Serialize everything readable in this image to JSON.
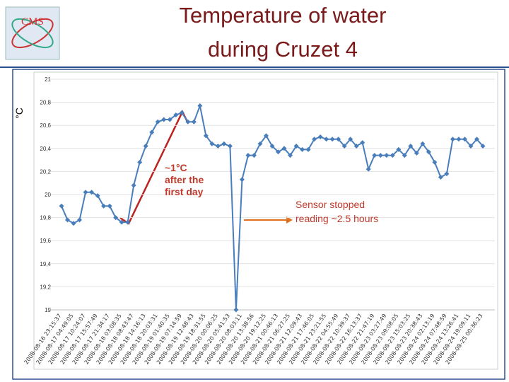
{
  "logo": "CMS",
  "chart_data": {
    "type": "line",
    "title": [
      "Temperature of water",
      "during Cruzet 4"
    ],
    "y_label": "°C",
    "categories": [
      "2008-08-16 23:15:37",
      null,
      "2008-08-17 04:49:05",
      null,
      "2008-08-17 10:24:07",
      null,
      "2008-08-17 15:57:49",
      null,
      "2008-08-17 21:34:17",
      null,
      "2008-08-18 03:08:35",
      null,
      "2008-08-18 08:43:47",
      null,
      "2008-08-18 14:16:13",
      null,
      "2008-08-18 20:03:31",
      null,
      "2008-08-19 01:40:35",
      null,
      "2008-08-19 07:14:59",
      null,
      "2008-08-19 12:48:43",
      null,
      "2008-08-19 18:31:55",
      null,
      "2008-08-20 00:06:25",
      null,
      "2008-08-20 05:41:53",
      null,
      "2008-08-20 08:03:11",
      null,
      "2008-08-20 13:38:56",
      null,
      "2008-08-20 19:12:25",
      null,
      "2008-08-21 00:46:13",
      null,
      "2008-08-21 06:27:25",
      null,
      "2008-08-21 12:09:43",
      null,
      "2008-08-21 17:46:05",
      null,
      "2008-08-21 23:21:55",
      null,
      "2008-08-22 04:55:49",
      null,
      "2008-08-22 10:39:37",
      null,
      "2008-08-22 16:13:37",
      null,
      "2008-08-22 21:47:19",
      null,
      "2008-08-23 03:27:49",
      null,
      "2008-08-23 09:08:05",
      null,
      "2008-08-23 15:03:25",
      null,
      "2008-08-23 20:38:43",
      null,
      "2008-08-24 02:13:19",
      null,
      "2008-08-24 07:48:59",
      null,
      "2008-08-24 13:26:41",
      null,
      "2008-08-24 19:09:11",
      null,
      "2008-08-25 00:36:23"
    ],
    "values": [
      19.9,
      19.78,
      19.75,
      19.78,
      20.02,
      20.02,
      19.99,
      19.9,
      19.9,
      19.8,
      19.76,
      19.76,
      20.08,
      20.28,
      20.42,
      20.54,
      20.63,
      20.65,
      20.65,
      20.69,
      20.71,
      20.63,
      20.63,
      20.77,
      20.51,
      20.44,
      20.42,
      20.44,
      20.42,
      19,
      20.13,
      20.34,
      20.34,
      20.44,
      20.51,
      20.42,
      20.37,
      20.4,
      20.34,
      20.42,
      20.39,
      20.39,
      20.48,
      20.5,
      20.48,
      20.48,
      20.48,
      20.42,
      20.48,
      20.42,
      20.45,
      20.22,
      20.34,
      20.34,
      20.34,
      20.34,
      20.39,
      20.34,
      20.42,
      20.36,
      20.44,
      20.37,
      20.28,
      20.15,
      20.18,
      20.48,
      20.48,
      20.48,
      20.42,
      20.48,
      20.42
    ],
    "color": "#4a7ebb",
    "ylim": [
      19,
      21
    ],
    "yticks": [
      19,
      {
        "value": 19.2,
        "label": "19,2"
      },
      {
        "value": 19.4,
        "label": "19,4"
      },
      {
        "value": 19.6,
        "label": "19,6"
      },
      {
        "value": 19.8,
        "label": "19,8"
      },
      20,
      {
        "value": 20.2,
        "label": "20,2"
      },
      {
        "value": 20.4,
        "label": "20,4"
      },
      {
        "value": 20.6,
        "label": "20,6"
      },
      {
        "value": 20.8,
        "label": "20,8"
      },
      21
    ],
    "grid": true,
    "annotations": [
      {
        "text": [
          "~1°C",
          "after the",
          "first day"
        ],
        "color": "#c0392b"
      },
      {
        "text": [
          "Sensor stopped",
          "reading ~2.5 hours"
        ],
        "color": "#c0392b"
      }
    ]
  }
}
